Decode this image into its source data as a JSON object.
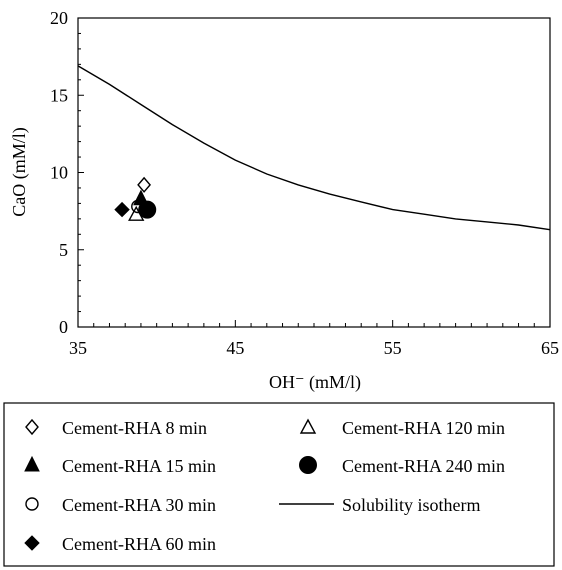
{
  "chart_data": {
    "type": "scatter",
    "xlabel": "OH⁻ (mM/l)",
    "ylabel": "CaO (mM/l)",
    "xlim": [
      35,
      65
    ],
    "ylim": [
      0,
      20
    ],
    "xticks": [
      35,
      45,
      55,
      65
    ],
    "yticks": [
      0,
      5,
      10,
      15,
      20
    ],
    "grid": false,
    "legend_position": "bottom",
    "series": [
      {
        "name": "Cement-RHA 8 min",
        "marker": "diamond-open",
        "x": [
          39.2
        ],
        "y": [
          9.2
        ]
      },
      {
        "name": "Cement-RHA 15 min",
        "marker": "triangle-filled",
        "x": [
          39.0
        ],
        "y": [
          8.3
        ]
      },
      {
        "name": "Cement-RHA 30 min",
        "marker": "circle-open",
        "x": [
          38.8
        ],
        "y": [
          7.8
        ]
      },
      {
        "name": "Cement-RHA 60 min",
        "marker": "diamond-filled",
        "x": [
          37.8
        ],
        "y": [
          7.6
        ]
      },
      {
        "name": "Cement-RHA 120 min",
        "marker": "triangle-open",
        "x": [
          38.7
        ],
        "y": [
          7.3
        ]
      },
      {
        "name": "Cement-RHA 240 min",
        "marker": "circle-filled",
        "x": [
          39.4
        ],
        "y": [
          7.6
        ]
      },
      {
        "name": "Solubility isotherm",
        "marker": "line",
        "x": [
          35,
          37,
          39,
          41,
          43,
          45,
          47,
          49,
          51,
          53,
          55,
          57,
          59,
          61,
          63,
          65
        ],
        "y": [
          16.9,
          15.7,
          14.4,
          13.1,
          11.9,
          10.8,
          9.9,
          9.2,
          8.6,
          8.1,
          7.6,
          7.3,
          7.0,
          6.8,
          6.6,
          6.3
        ]
      }
    ]
  }
}
